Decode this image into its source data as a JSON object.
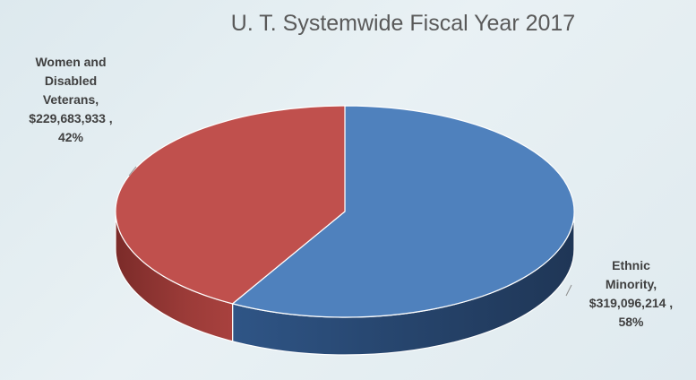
{
  "chart_data": {
    "type": "pie",
    "title": "U. T. Systemwide Fiscal Year 2017",
    "slices": [
      {
        "category": "Women and Disabled Veterans",
        "value": 229683933,
        "percent": 42,
        "color": "#c0504d",
        "label_lines": [
          "Women and",
          "Disabled",
          "Veterans,",
          "$229,683,933 ,",
          "42%"
        ]
      },
      {
        "category": "Ethnic Minority",
        "value": 319096214,
        "percent": 58,
        "color": "#4f81bd",
        "label_lines": [
          "Ethnic",
          "Minority,",
          "$319,096,214 ,",
          "58%"
        ]
      }
    ],
    "style": "3d"
  }
}
